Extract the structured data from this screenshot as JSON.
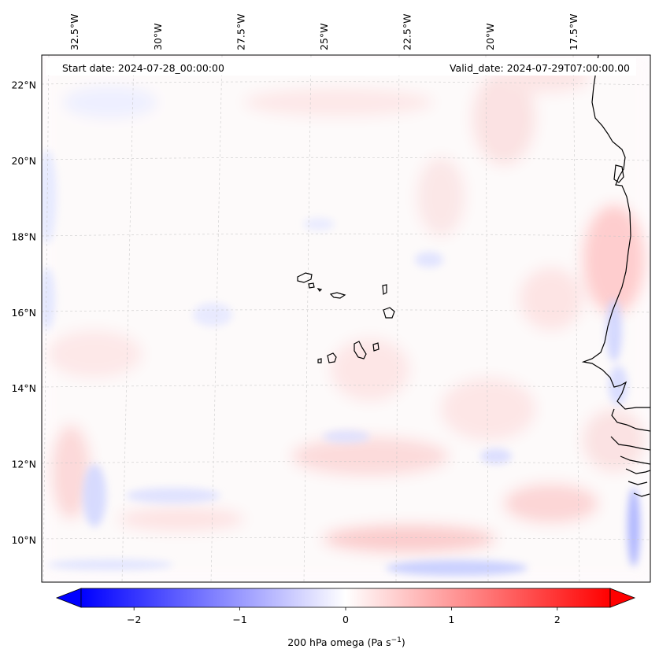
{
  "header": {
    "start_date": "Start date: 2024-07-28_00:00:00",
    "valid_date": "Valid_date: 2024-07-29T07:00:00.00"
  },
  "map": {
    "lon_range": [
      -33.5,
      -15.2
    ],
    "lat_range": [
      8.9,
      22.8
    ],
    "lon_ticks": [
      {
        "value": -32.5,
        "label": "32.5°W"
      },
      {
        "value": -30.0,
        "label": "30°W"
      },
      {
        "value": -27.5,
        "label": "27.5°W"
      },
      {
        "value": -25.0,
        "label": "25°W"
      },
      {
        "value": -22.5,
        "label": "22.5°W"
      },
      {
        "value": -20.0,
        "label": "20°W"
      },
      {
        "value": -17.5,
        "label": "17.5°W"
      }
    ],
    "lat_ticks": [
      {
        "value": 22,
        "label": "22°N"
      },
      {
        "value": 20,
        "label": "20°N"
      },
      {
        "value": 18,
        "label": "18°N"
      },
      {
        "value": 16,
        "label": "16°N"
      },
      {
        "value": 14,
        "label": "14°N"
      },
      {
        "value": 12,
        "label": "12°N"
      },
      {
        "value": 10,
        "label": "10°N"
      }
    ],
    "islands": [
      "Santo Antao",
      "Sao Vicente",
      "Santa Luzia",
      "Sao Nicolau",
      "Sal",
      "Boa Vista",
      "Maio",
      "Santiago",
      "Fogo",
      "Brava"
    ]
  },
  "colorbar": {
    "variable_label": "200 hPa omega (Pa s",
    "unit_superscript": "−1",
    "label_suffix": ")",
    "range": [
      -2.5,
      2.5
    ],
    "ticks": [
      {
        "value": -2,
        "label": "−2"
      },
      {
        "value": -1,
        "label": "−1"
      },
      {
        "value": 0,
        "label": "0"
      },
      {
        "value": 1,
        "label": "1"
      },
      {
        "value": 2,
        "label": "2"
      }
    ],
    "cmap_min_color": "#0000ff",
    "cmap_mid_color": "#ffffff",
    "cmap_max_color": "#ff0000"
  },
  "field_colors": {
    "weak_positive": "#ffe6e6",
    "moderate_positive": "#ffc4c4",
    "weak_negative": "#e6e8ff",
    "moderate_negative": "#c4c8ff",
    "coast": "#000000",
    "grid": "#c8c8c8"
  }
}
